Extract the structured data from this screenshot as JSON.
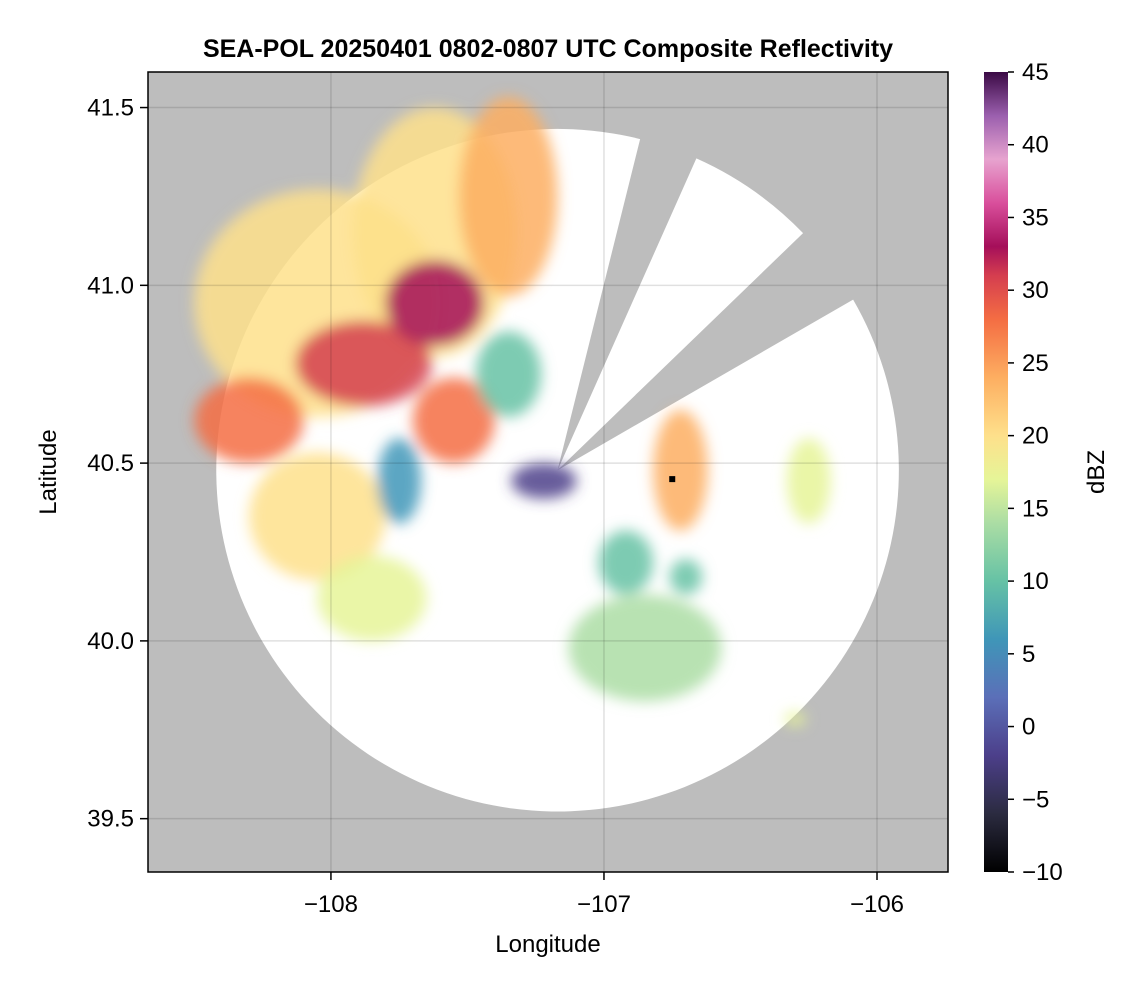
{
  "chart_data": {
    "type": "heatmap",
    "title": "SEA-POL 20250401 0802-0807 UTC Composite Reflectivity",
    "xlabel": "Longitude",
    "ylabel": "Latitude",
    "xlim": [
      -108.67,
      -105.74
    ],
    "ylim": [
      39.35,
      41.6
    ],
    "xticks": [
      -108,
      -107,
      -106
    ],
    "yticks": [
      39.5,
      40.0,
      40.5,
      41.0,
      41.5
    ],
    "xtick_labels": [
      "−108",
      "−107",
      "−106"
    ],
    "ytick_labels": [
      "39.5",
      "40.0",
      "40.5",
      "41.0",
      "41.5"
    ],
    "grid": true,
    "background_color": "#bdbdbd",
    "coverage_color": "#ffffff",
    "radar": {
      "center_lon": -107.17,
      "center_lat": 40.48,
      "blocked_sectors_deg_from_north": [
        [
          14,
          24
        ],
        [
          46,
          60
        ]
      ]
    },
    "marker": {
      "lon": -106.75,
      "lat": 40.455
    },
    "colorbar": {
      "label": "dBZ",
      "min": -10,
      "max": 45,
      "ticks": [
        -10,
        -5,
        0,
        5,
        10,
        15,
        20,
        25,
        30,
        35,
        40,
        45
      ],
      "tick_labels": [
        "−10",
        "−5",
        "0",
        "5",
        "10",
        "15",
        "20",
        "25",
        "30",
        "35",
        "40",
        "45"
      ],
      "colormap_stops": [
        {
          "v": -10,
          "c": "#000000"
        },
        {
          "v": -6,
          "c": "#2b2b40"
        },
        {
          "v": -2,
          "c": "#4c3f8a"
        },
        {
          "v": 2,
          "c": "#5b6fb8"
        },
        {
          "v": 6,
          "c": "#3f96b8"
        },
        {
          "v": 10,
          "c": "#66c2a5"
        },
        {
          "v": 14,
          "c": "#abdda4"
        },
        {
          "v": 17,
          "c": "#e6f598"
        },
        {
          "v": 20,
          "c": "#fee08b"
        },
        {
          "v": 24,
          "c": "#fdae61"
        },
        {
          "v": 28,
          "c": "#f46d43"
        },
        {
          "v": 31,
          "c": "#d53e4f"
        },
        {
          "v": 33,
          "c": "#a50f5a"
        },
        {
          "v": 36,
          "c": "#d94f9c"
        },
        {
          "v": 39,
          "c": "#e7a3cf"
        },
        {
          "v": 42,
          "c": "#9b5fae"
        },
        {
          "v": 45,
          "c": "#3b0a45"
        }
      ]
    },
    "echo_regions": [
      {
        "lon": -108.05,
        "lat": 40.95,
        "rx": 0.45,
        "ry": 0.32,
        "dbz": 22
      },
      {
        "lon": -107.62,
        "lat": 41.15,
        "rx": 0.3,
        "ry": 0.35,
        "dbz": 21
      },
      {
        "lon": -107.35,
        "lat": 41.25,
        "rx": 0.18,
        "ry": 0.28,
        "dbz": 24
      },
      {
        "lon": -108.3,
        "lat": 40.62,
        "rx": 0.2,
        "ry": 0.12,
        "dbz": 30
      },
      {
        "lon": -107.88,
        "lat": 40.78,
        "rx": 0.25,
        "ry": 0.12,
        "dbz": 31
      },
      {
        "lon": -107.62,
        "lat": 40.95,
        "rx": 0.18,
        "ry": 0.12,
        "dbz": 33
      },
      {
        "lon": -107.55,
        "lat": 40.62,
        "rx": 0.15,
        "ry": 0.12,
        "dbz": 28
      },
      {
        "lon": -108.05,
        "lat": 40.35,
        "rx": 0.25,
        "ry": 0.18,
        "dbz": 20
      },
      {
        "lon": -107.85,
        "lat": 40.12,
        "rx": 0.2,
        "ry": 0.12,
        "dbz": 19
      },
      {
        "lon": -107.75,
        "lat": 40.45,
        "rx": 0.08,
        "ry": 0.12,
        "dbz": 7
      },
      {
        "lon": -107.35,
        "lat": 40.75,
        "rx": 0.12,
        "ry": 0.12,
        "dbz": 12
      },
      {
        "lon": -107.22,
        "lat": 40.45,
        "rx": 0.12,
        "ry": 0.05,
        "dbz": 1
      },
      {
        "lon": -106.72,
        "lat": 40.48,
        "rx": 0.1,
        "ry": 0.17,
        "dbz": 27
      },
      {
        "lon": -106.85,
        "lat": 39.98,
        "rx": 0.28,
        "ry": 0.15,
        "dbz": 16
      },
      {
        "lon": -106.92,
        "lat": 40.22,
        "rx": 0.1,
        "ry": 0.09,
        "dbz": 13
      },
      {
        "lon": -106.7,
        "lat": 40.18,
        "rx": 0.06,
        "ry": 0.05,
        "dbz": 11
      },
      {
        "lon": -106.25,
        "lat": 40.45,
        "rx": 0.08,
        "ry": 0.12,
        "dbz": 18
      },
      {
        "lon": -106.3,
        "lat": 39.78,
        "rx": 0.04,
        "ry": 0.02,
        "dbz": 18
      }
    ]
  }
}
